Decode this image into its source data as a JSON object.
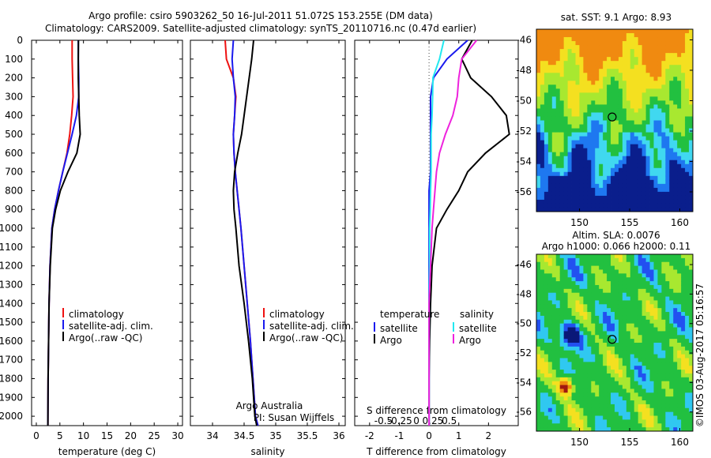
{
  "header": {
    "line1": "Argo profile: csiro 5903262_50 16-Jul-2011 51.072S 153.255E (DM data)",
    "line2": "Climatology: CARS2009. Satellite-adjusted climatology: synTS_20110716.nc (0.47d earlier)"
  },
  "credits": {
    "watermark": "©IMOS 03-Aug-2017 05:16:57",
    "org": "Argo Australia",
    "pi": "PI: Susan Wijffels"
  },
  "colors": {
    "climatology": "#ee1111",
    "satellite": "#1a1aee",
    "argo": "#000000",
    "sal_satellite": "#22e8f0",
    "sal_argo": "#ee22dd",
    "grid": "#b0b0b0"
  },
  "chart_data": [
    {
      "type": "line",
      "xlabel": "temperature (deg C)",
      "ylabel": "",
      "xlim": [
        -1,
        31
      ],
      "ylim": [
        2050,
        0
      ],
      "xticks": [
        0,
        5,
        10,
        15,
        20,
        25,
        30
      ],
      "yticks": [
        0,
        100,
        200,
        300,
        400,
        500,
        600,
        700,
        800,
        900,
        1000,
        1100,
        1200,
        1300,
        1400,
        1500,
        1600,
        1700,
        1800,
        1900,
        2000
      ],
      "legend": [
        "climatology",
        "satellite-adj. clim.",
        "Argo(..raw -QC)"
      ],
      "series": [
        {
          "name": "climatology",
          "x": [
            7.6,
            7.6,
            7.7,
            7.8,
            7.5,
            7.1,
            6.5,
            5.6,
            4.7,
            3.9,
            3.3,
            2.9,
            2.7,
            2.6,
            2.5,
            2.45
          ],
          "y": [
            0,
            100,
            200,
            300,
            400,
            500,
            600,
            700,
            800,
            900,
            1000,
            1200,
            1400,
            1600,
            1800,
            2050
          ]
        },
        {
          "name": "satellite-adj. clim.",
          "x": [
            8.9,
            8.9,
            9.0,
            9.0,
            8.5,
            7.6,
            6.6,
            5.6,
            4.7,
            3.9,
            3.3,
            2.9,
            2.7,
            2.6,
            2.5,
            2.45
          ],
          "y": [
            0,
            100,
            200,
            300,
            400,
            500,
            600,
            700,
            800,
            900,
            1000,
            1200,
            1400,
            1600,
            1800,
            2050
          ]
        },
        {
          "name": "Argo(..raw -QC)",
          "x": [
            8.93,
            8.9,
            8.9,
            9.0,
            9.1,
            9.3,
            8.6,
            6.7,
            5.1,
            4.1,
            3.4,
            2.95,
            2.7,
            2.6,
            2.5,
            2.45
          ],
          "y": [
            0,
            100,
            200,
            300,
            400,
            500,
            600,
            700,
            800,
            900,
            1000,
            1200,
            1400,
            1600,
            1800,
            2050
          ]
        }
      ]
    },
    {
      "type": "line",
      "xlabel": "salinity",
      "ylabel": "",
      "xlim": [
        33.65,
        36.1
      ],
      "ylim": [
        2050,
        0
      ],
      "xticks": [
        34,
        34.5,
        35,
        35.5,
        36
      ],
      "yticks": [
        0,
        100,
        200,
        300,
        400,
        500,
        600,
        700,
        800,
        900,
        1000,
        1100,
        1200,
        1300,
        1400,
        1500,
        1600,
        1700,
        1800,
        1900,
        2000
      ],
      "legend": [
        "climatology",
        "satellite-adj. clim.",
        "Argo(..raw -QC)"
      ],
      "series": [
        {
          "name": "climatology",
          "x": [
            34.2,
            34.22,
            34.33,
            34.37,
            34.35,
            34.33,
            34.34,
            34.36,
            34.39,
            34.42,
            34.45,
            34.5,
            34.55,
            34.6,
            34.64,
            34.68,
            34.72
          ],
          "y": [
            0,
            100,
            200,
            300,
            400,
            500,
            600,
            700,
            800,
            900,
            1000,
            1200,
            1400,
            1600,
            1800,
            2000,
            2050
          ]
        },
        {
          "name": "satellite-adj. clim.",
          "x": [
            34.33,
            34.31,
            34.33,
            34.36,
            34.35,
            34.33,
            34.34,
            34.36,
            34.39,
            34.42,
            34.45,
            34.5,
            34.55,
            34.6,
            34.64,
            34.68,
            34.72
          ],
          "y": [
            0,
            100,
            200,
            300,
            400,
            500,
            600,
            700,
            800,
            900,
            1000,
            1200,
            1400,
            1600,
            1800,
            2000,
            2050
          ]
        },
        {
          "name": "Argo(..raw -QC)",
          "x": [
            34.65,
            34.62,
            34.58,
            34.54,
            34.5,
            34.46,
            34.4,
            34.35,
            34.33,
            34.34,
            34.37,
            34.42,
            34.5,
            34.57,
            34.63,
            34.67,
            34.7
          ],
          "y": [
            0,
            100,
            200,
            300,
            400,
            500,
            600,
            700,
            800,
            900,
            1000,
            1200,
            1400,
            1600,
            1800,
            2000,
            2050
          ]
        }
      ]
    },
    {
      "type": "line",
      "title": "",
      "xlabel": "T difference from climatology",
      "xlabel_top": "S difference from climatology",
      "xlim": [
        -2.5,
        3
      ],
      "ylim": [
        2050,
        0
      ],
      "xticks": [
        -2,
        -1,
        0,
        1,
        2
      ],
      "xticks_secondary": [
        "-0.5",
        "-0.25",
        "0",
        "0.25",
        "0.5"
      ],
      "yticks": [
        0,
        100,
        200,
        300,
        400,
        500,
        600,
        700,
        800,
        900,
        1000,
        1100,
        1200,
        1300,
        1400,
        1500,
        1600,
        1700,
        1800,
        1900,
        2000
      ],
      "legend_title_left": "temperature",
      "legend_title_right": "salinity",
      "legend": [
        "satellite",
        "Argo",
        "satellite",
        "Argo"
      ],
      "series": [
        {
          "name": "temperature satellite",
          "x": [
            1.3,
            0.6,
            0.15,
            0.05,
            0.05,
            0.05,
            0.05,
            0.05,
            0.0,
            0.0,
            0.0,
            0.0,
            0.0,
            0.0,
            0.0,
            0.0
          ],
          "y": [
            0,
            100,
            200,
            300,
            400,
            500,
            600,
            700,
            800,
            900,
            1000,
            1200,
            1400,
            1600,
            1800,
            2050
          ]
        },
        {
          "name": "temperature Argo",
          "x": [
            1.45,
            1.1,
            1.4,
            2.1,
            2.6,
            2.7,
            1.9,
            1.3,
            1.0,
            0.6,
            0.25,
            0.1,
            0.05,
            0.02,
            0.0,
            0.0
          ],
          "y": [
            0,
            100,
            200,
            300,
            400,
            500,
            600,
            700,
            800,
            900,
            1000,
            1200,
            1400,
            1600,
            1800,
            2050
          ]
        },
        {
          "name": "salinity satellite",
          "x": [
            0.5,
            0.35,
            0.13,
            0.12,
            0.1,
            0.07,
            0.07,
            0.07,
            0.05,
            0.04,
            0.02,
            0.02,
            0.0,
            0.0,
            0.0,
            0.0
          ],
          "y": [
            0,
            100,
            200,
            300,
            400,
            500,
            600,
            700,
            800,
            900,
            1000,
            1200,
            1400,
            1600,
            1800,
            2050
          ]
        },
        {
          "name": "salinity Argo",
          "x": [
            1.6,
            1.1,
            1.0,
            0.95,
            0.8,
            0.55,
            0.35,
            0.25,
            0.2,
            0.15,
            0.1,
            0.05,
            0.0,
            0.0,
            0.0,
            0.0
          ],
          "y": [
            0,
            100,
            200,
            300,
            400,
            500,
            600,
            700,
            800,
            900,
            1000,
            1200,
            1400,
            1600,
            1800,
            2050
          ]
        }
      ]
    },
    {
      "type": "heatmap",
      "title": "sat. SST: 9.1  Argo: 8.93",
      "xlim": [
        145.7,
        161.3
      ],
      "ylim": [
        -57.3,
        -45.3
      ],
      "xticks": [
        150,
        155,
        160
      ],
      "yticks": [
        -46,
        -48,
        -50,
        -52,
        -54,
        -56
      ],
      "marker": {
        "lon": 153.255,
        "lat": -51.072
      }
    },
    {
      "type": "heatmap",
      "title": "Altim. SLA: 0.0076",
      "subtitle": "Argo h1000: 0.066 h2000: 0.11",
      "xlim": [
        145.7,
        161.3
      ],
      "ylim": [
        -57.3,
        -45.3
      ],
      "xticks": [
        150,
        155,
        160
      ],
      "yticks": [
        -46,
        -48,
        -50,
        -52,
        -54,
        -56
      ],
      "marker": {
        "lon": 153.255,
        "lat": -51.072
      }
    }
  ]
}
